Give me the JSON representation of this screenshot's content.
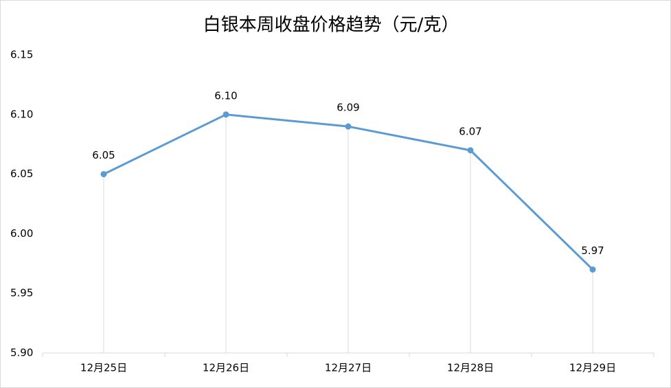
{
  "chart_data": {
    "type": "line",
    "title": "白银本周收盘价格趋势（元/克）",
    "categories": [
      "12月25日",
      "12月26日",
      "12月27日",
      "12月28日",
      "12月29日"
    ],
    "values": [
      6.05,
      6.1,
      6.09,
      6.07,
      5.97
    ],
    "value_labels": [
      "6.05",
      "6.10",
      "6.09",
      "6.07",
      "5.97"
    ],
    "color": "#5b9bd5",
    "ylim": [
      5.9,
      6.15
    ],
    "yticks": [
      {
        "value": 5.9,
        "label": "5.90"
      },
      5.95,
      {
        "value": 6,
        "label": "6.00"
      },
      6.05,
      {
        "value": 6.1,
        "label": "6.10"
      },
      6.15
    ],
    "drop_lines": true
  }
}
